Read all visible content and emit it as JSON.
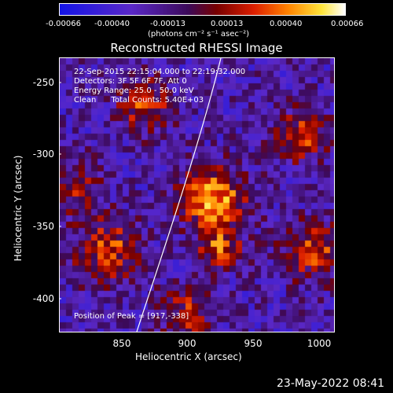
{
  "colorbar": {
    "ticks": [
      "-0.00066",
      "-0.00040",
      "-0.00013",
      "0.00013",
      "0.00040",
      "0.00066"
    ],
    "unit": "(photons cm⁻² s⁻¹ asec⁻²)"
  },
  "title": "Reconstructed RHESSI Image",
  "info": {
    "line1": "22-Sep-2015 22:15:04.000 to 22:19:32.000",
    "line2": "Detectors: 3F 5F 6F 7F, Att 0",
    "line3": "Energy Range: 25.0 - 50.0 keV",
    "line4": "Clean      Total Counts: 5.40E+03",
    "peak": "Position of Peak = [917,-338]"
  },
  "axes": {
    "xlabel": "Heliocentric X (arcsec)",
    "ylabel": "Heliocentric Y (arcsec)",
    "xticks": [
      "850",
      "900",
      "950",
      "1000"
    ],
    "yticks": [
      "-250",
      "-300",
      "-350",
      "-400"
    ]
  },
  "timestamp": "23-May-2022 08:41",
  "colors": {
    "background": "#000000",
    "text": "#ffffff"
  }
}
